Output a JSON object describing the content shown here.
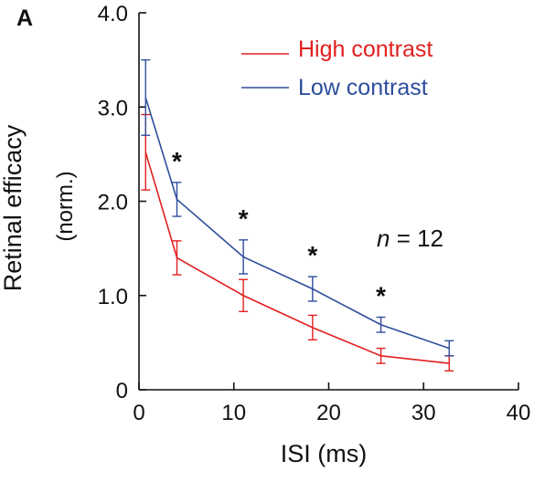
{
  "chart_data": {
    "type": "line",
    "panel_label": "A",
    "xlabel": "ISI (ms)",
    "ylabel": "Retinal efficacy",
    "ylabel_sub": "(norm.)",
    "xlim": [
      0,
      40
    ],
    "ylim": [
      0,
      4.0
    ],
    "x_ticks": [
      0,
      10,
      20,
      30,
      40
    ],
    "x_tick_labels": [
      "0",
      "10",
      "20",
      "30",
      "40"
    ],
    "y_ticks": [
      0,
      1.0,
      2.0,
      3.0,
      4.0
    ],
    "y_tick_labels": [
      "0",
      "1.0",
      "2.0",
      "3.0",
      "4.0"
    ],
    "grid": false,
    "legend_position": "top-right",
    "annotation_n": {
      "italic": "n",
      "rest": " = 12"
    },
    "significance_marks": [
      {
        "x": 4,
        "label": "*"
      },
      {
        "x": 11,
        "label": "*"
      },
      {
        "x": 18.3,
        "label": "*"
      },
      {
        "x": 25.5,
        "label": "*"
      }
    ],
    "series": [
      {
        "name": "High contrast",
        "color": "#e02020",
        "x": [
          0.7,
          4,
          11,
          18.3,
          25.5,
          32.7
        ],
        "y": [
          2.52,
          1.4,
          1.0,
          0.66,
          0.36,
          0.28
        ],
        "err": [
          0.4,
          0.18,
          0.17,
          0.13,
          0.08,
          0.08
        ]
      },
      {
        "name": "Low contrast",
        "color": "#2e4d9c",
        "x": [
          0.7,
          4,
          11,
          18.3,
          25.5,
          32.7
        ],
        "y": [
          3.1,
          2.02,
          1.41,
          1.07,
          0.69,
          0.44
        ],
        "err": [
          0.4,
          0.18,
          0.18,
          0.13,
          0.08,
          0.08
        ]
      }
    ]
  }
}
